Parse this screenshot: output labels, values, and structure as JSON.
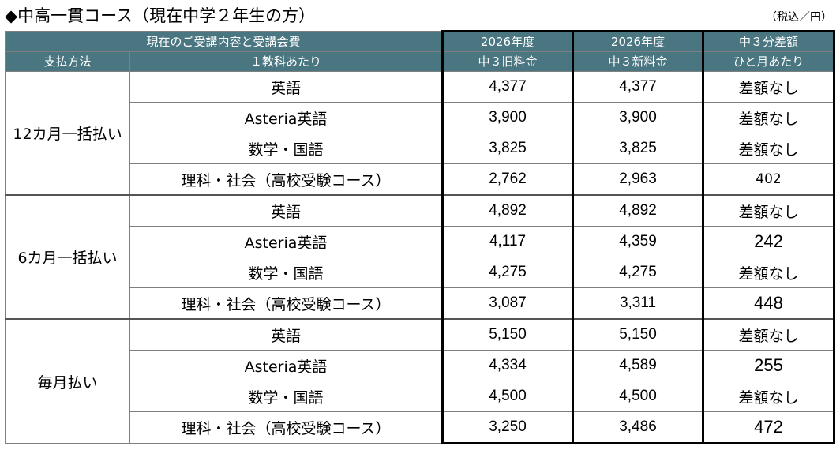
{
  "title": "◆中高一貫コース（現在中学２年生の方）",
  "unit": "（税込／円）",
  "header": {
    "group_label": "現在のご受講内容と受講会費",
    "payment_label": "支払方法",
    "per_subject_label": "１教科あたり",
    "old_fee_line1": "2026年度",
    "old_fee_line2": "中３旧料金",
    "new_fee_line1": "2026年度",
    "new_fee_line2": "中３新料金",
    "diff_line1": "中３分差額",
    "diff_line2": "ひと月あたり"
  },
  "groups": [
    {
      "method": "12カ月一括払い",
      "rows": [
        {
          "subject": "英語",
          "old": "4,377",
          "new": "4,377",
          "diff": "差額なし"
        },
        {
          "subject": "Asteria英語",
          "old": "3,900",
          "new": "3,900",
          "diff": "差額なし"
        },
        {
          "subject": "数学・国語",
          "old": "3,825",
          "new": "3,825",
          "diff": "差額なし"
        },
        {
          "subject": "理科・社会（高校受験コース）",
          "old": "2,762",
          "new": "2,963",
          "diff": "402"
        }
      ]
    },
    {
      "method": "6カ月一括払い",
      "rows": [
        {
          "subject": "英語",
          "old": "4,892",
          "new": "4,892",
          "diff": "差額なし"
        },
        {
          "subject": "Asteria英語",
          "old": "4,117",
          "new": "4,359",
          "diff": "242"
        },
        {
          "subject": "数学・国語",
          "old": "4,275",
          "new": "4,275",
          "diff": "差額なし"
        },
        {
          "subject": "理科・社会（高校受験コース）",
          "old": "3,087",
          "new": "3,311",
          "diff": "448"
        }
      ]
    },
    {
      "method": "毎月払い",
      "rows": [
        {
          "subject": "英語",
          "old": "5,150",
          "new": "5,150",
          "diff": "差額なし"
        },
        {
          "subject": "Asteria英語",
          "old": "4,334",
          "new": "4,589",
          "diff": "255"
        },
        {
          "subject": "数学・国語",
          "old": "4,500",
          "new": "4,500",
          "diff": "差額なし"
        },
        {
          "subject": "理科・社会（高校受験コース）",
          "old": "3,250",
          "new": "3,486",
          "diff": "472"
        }
      ]
    }
  ]
}
